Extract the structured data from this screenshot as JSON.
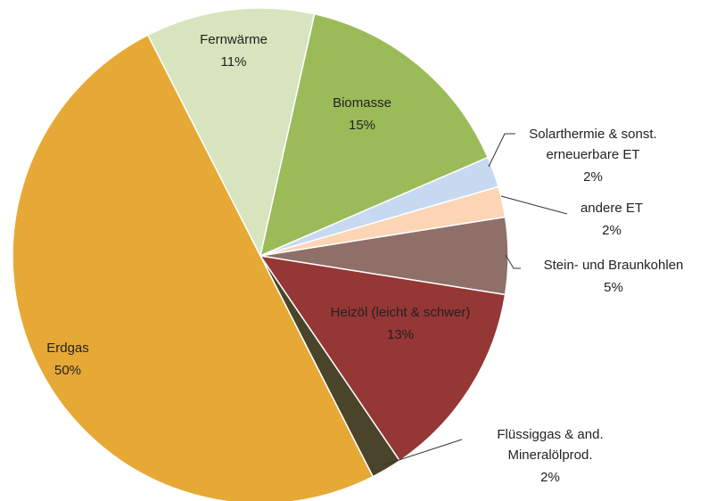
{
  "chart_data": {
    "type": "pie",
    "categories": [
      "Fernwärme",
      "Biomasse",
      "Solarthermie & sonst. erneuerbare ET",
      "andere ET",
      "Stein- und Braunkohlen",
      "Heizöl (leicht & schwer)",
      "Flüssiggas & and. Mineralölprod.",
      "Erdgas"
    ],
    "values": [
      11,
      15,
      2,
      2,
      5,
      13,
      2,
      50
    ],
    "value_labels": [
      "11%",
      "15%",
      "2%",
      "2%",
      "5%",
      "13%",
      "2%",
      "50%"
    ],
    "colors": [
      "#d7e4bd",
      "#9bbb59",
      "#c6d9f1",
      "#fcd5b5",
      "#8e7069",
      "#953735",
      "#4a452a",
      "#e6a935"
    ]
  }
}
